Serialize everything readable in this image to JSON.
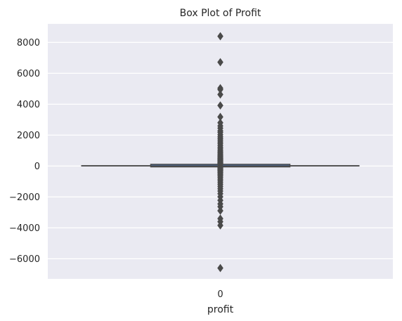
{
  "chart_data": {
    "type": "box",
    "title": "Box Plot of Profit",
    "xlabel": "profit",
    "ylabel": "",
    "categories": [
      "0"
    ],
    "ylim": [
      -7300,
      9200
    ],
    "y_ticks": [
      8000,
      6000,
      4000,
      2000,
      0,
      -2000,
      -4000,
      -6000
    ],
    "y_tick_labels": [
      "8000",
      "6000",
      "4000",
      "2000",
      "0",
      "−2000",
      "−4000",
      "−6000"
    ],
    "grid": true,
    "colors": {
      "background": "#EAEAF2",
      "grid": "#FFFFFF",
      "box_line": "#4A4A4A",
      "box_fill": "#4C72B0",
      "outlier": "#4A4A4A"
    },
    "box": {
      "q1": 1.7,
      "median": 8.7,
      "q3": 29.4,
      "whisker_low": -39.7,
      "whisker_high": 70.8,
      "outliers": [
        8400,
        6720,
        5040,
        4950,
        4630,
        3920,
        3180,
        2800,
        2600,
        2450,
        2280,
        2180,
        2030,
        1900,
        1790,
        1680,
        1560,
        1450,
        1330,
        1210,
        1110,
        1000,
        920,
        840,
        760,
        690,
        620,
        560,
        500,
        440,
        390,
        340,
        290,
        240,
        200,
        160,
        130,
        100,
        -80,
        -120,
        -170,
        -220,
        -280,
        -340,
        -410,
        -480,
        -560,
        -640,
        -740,
        -850,
        -960,
        -1080,
        -1200,
        -1330,
        -1470,
        -1620,
        -1790,
        -1990,
        -2220,
        -2450,
        -2630,
        -2890,
        -3400,
        -3600,
        -3840,
        -6600
      ]
    }
  }
}
